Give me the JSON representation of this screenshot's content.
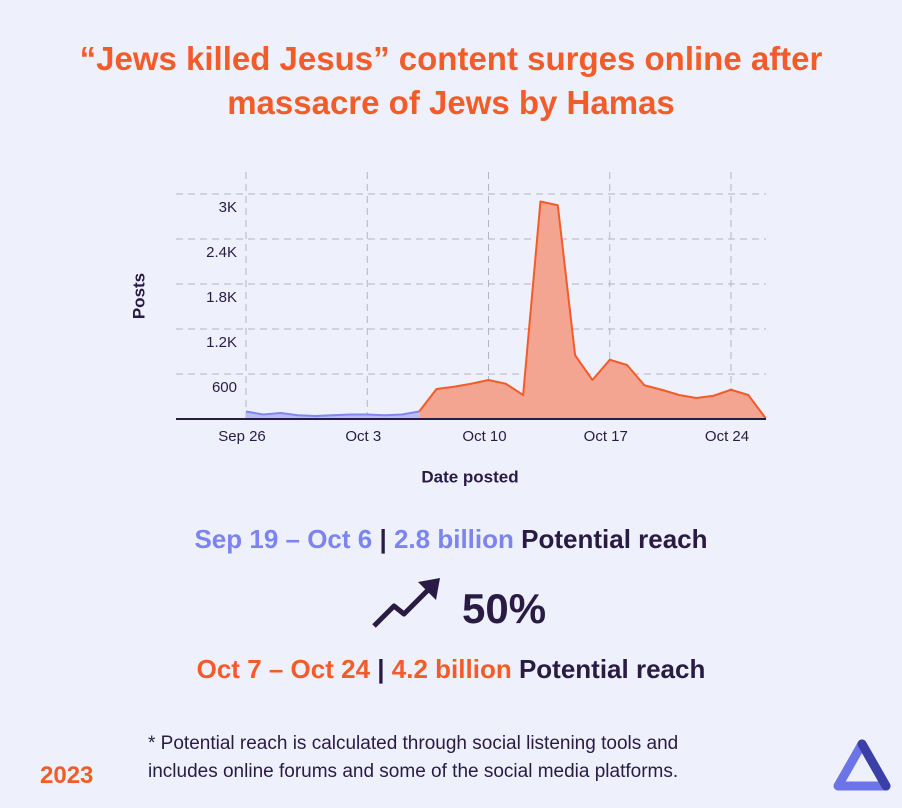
{
  "chart_data": {
    "type": "area",
    "title_lines": [
      "“Jews killed Jesus” content surges online after",
      "massacre of Jews by Hamas"
    ],
    "x_label": "Date posted",
    "y_label": "Posts",
    "x": [
      "Sep 26",
      "Sep 27",
      "Sep 28",
      "Sep 29",
      "Sep 30",
      "Oct 1",
      "Oct 2",
      "Oct 3",
      "Oct 4",
      "Oct 5",
      "Oct 6",
      "Oct 7",
      "Oct 8",
      "Oct 9",
      "Oct 10",
      "Oct 11",
      "Oct 12",
      "Oct 13",
      "Oct 14",
      "Oct 15",
      "Oct 16",
      "Oct 17",
      "Oct 18",
      "Oct 19",
      "Oct 20",
      "Oct 21",
      "Oct 22",
      "Oct 23",
      "Oct 24",
      "Oct 25",
      "Oct 26"
    ],
    "xticks": [
      "Sep 26",
      "Oct 3",
      "Oct 10",
      "Oct 17",
      "Oct 24"
    ],
    "series": [
      {
        "color": "#8088f0",
        "fill": "#b9bdf4",
        "values": [
          100,
          60,
          80,
          50,
          40,
          50,
          60,
          60,
          50,
          60,
          100,
          null,
          null,
          null,
          null,
          null,
          null,
          null,
          null,
          null,
          null,
          null,
          null,
          null,
          null,
          null,
          null,
          null,
          null,
          null,
          null
        ]
      },
      {
        "color": "#f25c2a",
        "fill": "#f4a592",
        "values": [
          null,
          null,
          null,
          null,
          null,
          null,
          null,
          null,
          null,
          null,
          100,
          400,
          430,
          470,
          520,
          470,
          320,
          2900,
          2850,
          850,
          520,
          790,
          720,
          450,
          390,
          320,
          280,
          310,
          390,
          320,
          10
        ]
      }
    ],
    "ylim": [
      0,
      3000
    ],
    "yticks": [
      600,
      {
        "value": 1200,
        "label": "1.2K"
      },
      {
        "value": 1800,
        "label": "1.8K"
      },
      {
        "value": 2400,
        "label": "2.4K"
      },
      {
        "value": 3000,
        "label": "3K"
      }
    ],
    "grid": true
  },
  "stats": {
    "before": {
      "dates": "Sep 19 – Oct 6",
      "separator": "|",
      "reach": "2.8 billion",
      "label": "Potential reach"
    },
    "change": "50%",
    "after": {
      "dates": "Oct 7 – Oct 24",
      "separator": "|",
      "reach": "4.2 billion",
      "label": "Potential reach"
    }
  },
  "footnote": [
    "* Potential reach is calculated through social listening tools and",
    "includes online forums and some of the social media platforms."
  ],
  "year": "2023"
}
